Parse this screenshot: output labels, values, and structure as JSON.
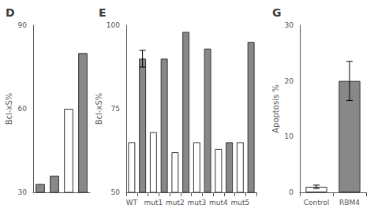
{
  "chart_data": [
    {
      "type": "bar",
      "title": "D",
      "categories": [
        null,
        null,
        null,
        null
      ],
      "values": [
        33,
        36,
        60,
        80
      ],
      "colors": [
        "#888888",
        "#888888",
        "#ffffff",
        "#888888"
      ],
      "ylabel": "Bcl-xS%",
      "ylim": [
        30,
        90
      ],
      "yticks": [
        30,
        60,
        90
      ],
      "tick_labels": "y"
    },
    {
      "type": "bar",
      "title": "E",
      "categories": [
        "WT",
        null,
        "mut1",
        null,
        "mut2",
        null,
        "mut3",
        null,
        "mut4",
        null,
        "mut5",
        null
      ],
      "values": [
        65,
        90,
        68,
        90,
        62,
        98,
        65,
        93,
        63,
        65,
        65,
        95
      ],
      "errors": [
        null,
        2.5,
        null,
        null,
        null,
        null,
        null,
        null,
        null,
        null,
        null,
        null
      ],
      "colors": [
        "#ffffff",
        "#888888",
        "#ffffff",
        "#888888",
        "#ffffff",
        "#888888",
        "#ffffff",
        "#888888",
        "#ffffff",
        "#888888",
        "#ffffff",
        "#888888"
      ],
      "ylabel": "Bcl-xS%",
      "ylim": [
        50,
        100
      ],
      "yticks": [
        50,
        75,
        100
      ]
    },
    {
      "type": "bar",
      "title": "G",
      "categories": [
        "Control",
        "RBM4"
      ],
      "values": [
        1,
        20
      ],
      "errors": [
        0.3,
        3.5
      ],
      "colors": [
        "#ffffff",
        "#888888"
      ],
      "ylabel": "Apoptosis %",
      "ylim": [
        0,
        30
      ],
      "yticks": [
        0,
        10,
        20,
        30
      ]
    }
  ]
}
